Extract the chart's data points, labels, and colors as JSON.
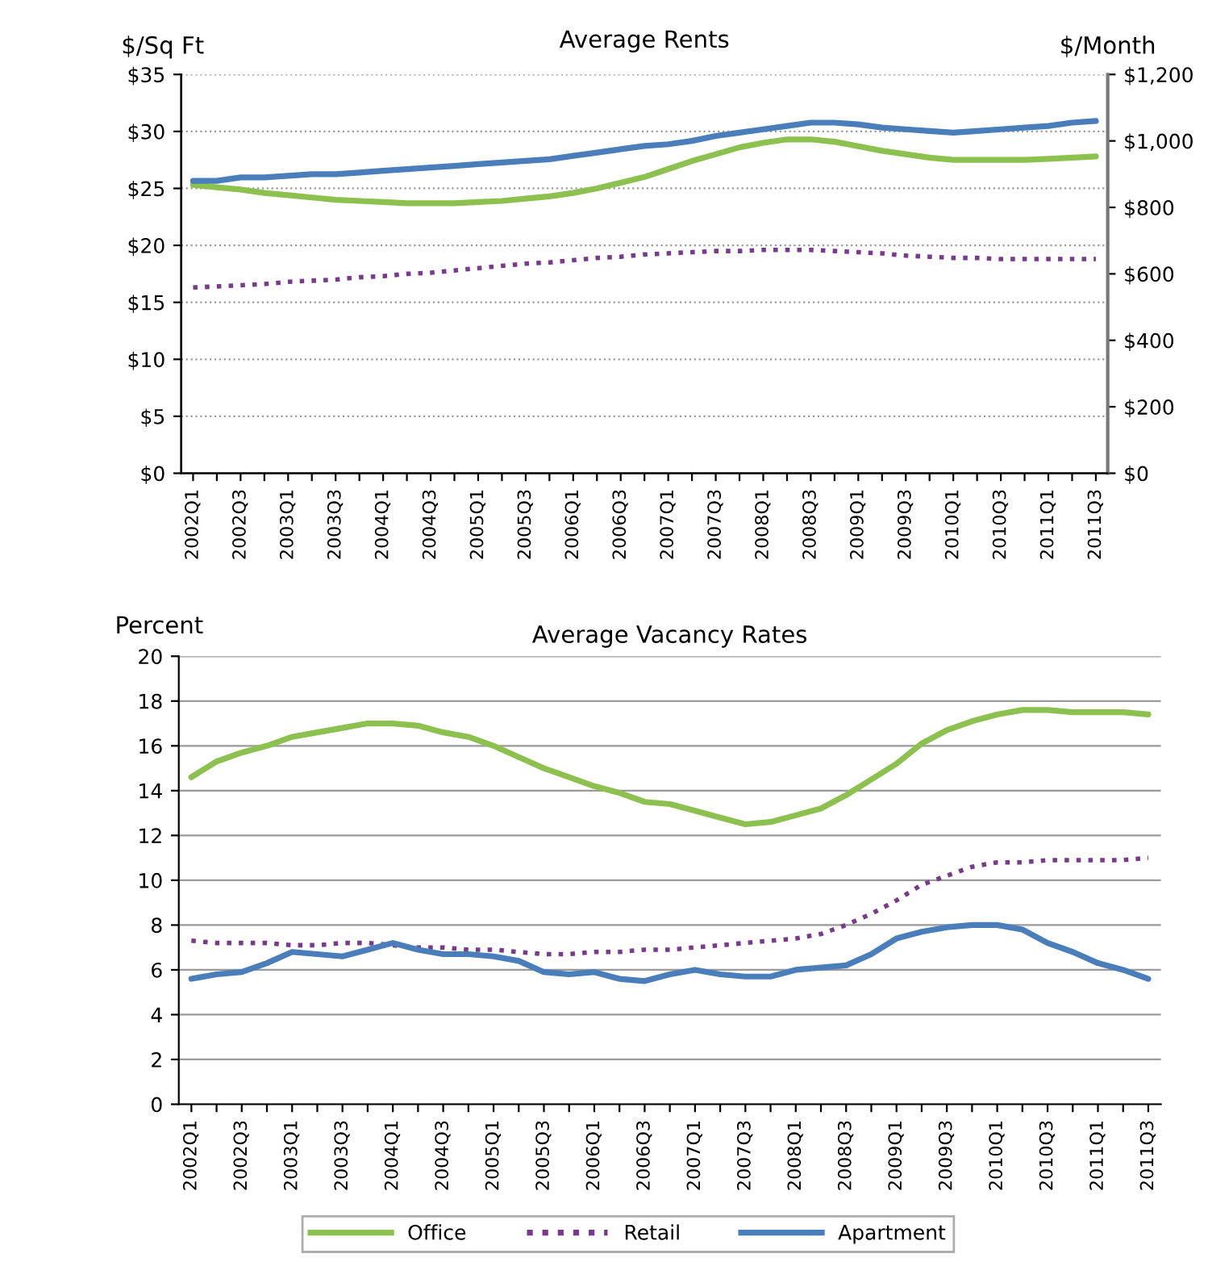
{
  "chart_data": [
    {
      "type": "line",
      "title": "Average Rents",
      "ylabel": "$/Sq Ft",
      "y2label": "$/Month",
      "categories": [
        "2002Q1",
        null,
        "2002Q3",
        null,
        "2003Q1",
        null,
        "2003Q3",
        null,
        "2004Q1",
        null,
        "2004Q3",
        null,
        "2005Q1",
        null,
        "2005Q3",
        null,
        "2006Q1",
        null,
        "2006Q3",
        null,
        "2007Q1",
        null,
        "2007Q3",
        null,
        "2008Q1",
        null,
        "2008Q3",
        null,
        "2009Q1",
        null,
        "2009Q3",
        null,
        "2010Q1",
        null,
        "2010Q3",
        null,
        "2011Q1",
        null,
        "2011Q3"
      ],
      "series": [
        {
          "color": "#8cc04f",
          "line_style": "solid",
          "values": [
            25.3,
            25.1,
            24.9,
            24.6,
            24.4,
            24.2,
            24.0,
            23.9,
            23.8,
            23.7,
            23.7,
            23.7,
            23.8,
            23.9,
            24.1,
            24.3,
            24.6,
            25.0,
            25.5,
            26.0,
            26.7,
            27.4,
            28.0,
            28.6,
            29.0,
            29.3,
            29.3,
            29.1,
            28.7,
            28.3,
            28.0,
            27.7,
            27.5,
            27.5,
            27.5,
            27.5,
            27.6,
            27.7,
            27.8
          ]
        },
        {
          "color": "#7a3a8c",
          "line_style": "dotted",
          "values": [
            16.3,
            16.4,
            16.5,
            16.6,
            16.8,
            16.9,
            17.0,
            17.2,
            17.3,
            17.5,
            17.6,
            17.8,
            18.0,
            18.2,
            18.4,
            18.5,
            18.7,
            18.9,
            19.0,
            19.2,
            19.3,
            19.4,
            19.5,
            19.5,
            19.6,
            19.6,
            19.6,
            19.5,
            19.4,
            19.3,
            19.1,
            19.0,
            18.9,
            18.9,
            18.8,
            18.8,
            18.8,
            18.8,
            18.8
          ]
        },
        {
          "color": "#4a7ebb",
          "line_style": "solid",
          "axis": "y2",
          "values": [
            880,
            880,
            890,
            890,
            895,
            900,
            900,
            905,
            910,
            915,
            920,
            925,
            930,
            935,
            940,
            945,
            955,
            965,
            975,
            985,
            990,
            1000,
            1015,
            1025,
            1035,
            1045,
            1055,
            1055,
            1050,
            1040,
            1035,
            1030,
            1025,
            1030,
            1035,
            1040,
            1045,
            1055,
            1060
          ]
        }
      ],
      "ylim": [
        0,
        35
      ],
      "yticks": [
        {
          "value": 0,
          "label": "$0"
        },
        {
          "value": 5,
          "label": "$5"
        },
        {
          "value": 10,
          "label": "$10"
        },
        {
          "value": 15,
          "label": "$15"
        },
        {
          "value": 20,
          "label": "$20"
        },
        {
          "value": 25,
          "label": "$25"
        },
        {
          "value": 30,
          "label": "$30"
        },
        {
          "value": 35,
          "label": "$35"
        }
      ],
      "y2lim": [
        0,
        1200
      ],
      "y2ticks": [
        {
          "value": 0,
          "label": "$0"
        },
        {
          "value": 200,
          "label": "$200"
        },
        {
          "value": 400,
          "label": "$400"
        },
        {
          "value": 600,
          "label": "$600"
        },
        {
          "value": 800,
          "label": "$800"
        },
        {
          "value": 1000,
          "label": "$1,000"
        },
        {
          "value": 1200,
          "label": "$1,200"
        }
      ],
      "grid": "y",
      "legend": false
    },
    {
      "type": "line",
      "title": "Average Vacancy Rates",
      "ylabel": "Percent",
      "categories": [
        "2002Q1",
        null,
        "2002Q3",
        null,
        "2003Q1",
        null,
        "2003Q3",
        null,
        "2004Q1",
        null,
        "2004Q3",
        null,
        "2005Q1",
        null,
        "2005Q3",
        null,
        "2006Q1",
        null,
        "2006Q3",
        null,
        "2007Q1",
        null,
        "2007Q3",
        null,
        "2008Q1",
        null,
        "2008Q3",
        null,
        "2009Q1",
        null,
        "2009Q3",
        null,
        "2010Q1",
        null,
        "2010Q3",
        null,
        "2011Q1",
        null,
        "2011Q3"
      ],
      "series": [
        {
          "name": "Office",
          "color": "#8cc04f",
          "line_style": "solid",
          "values": [
            14.6,
            15.3,
            15.7,
            16.0,
            16.4,
            16.6,
            16.8,
            17.0,
            17.0,
            16.9,
            16.6,
            16.4,
            16.0,
            15.5,
            15.0,
            14.6,
            14.2,
            13.9,
            13.5,
            13.4,
            13.1,
            12.8,
            12.5,
            12.6,
            12.9,
            13.2,
            13.8,
            14.5,
            15.2,
            16.1,
            16.7,
            17.1,
            17.4,
            17.6,
            17.6,
            17.5,
            17.5,
            17.5,
            17.4
          ]
        },
        {
          "name": "Retail",
          "color": "#7a3a8c",
          "line_style": "dotted",
          "values": [
            7.3,
            7.2,
            7.2,
            7.2,
            7.1,
            7.1,
            7.2,
            7.2,
            7.1,
            7.0,
            7.0,
            6.9,
            6.9,
            6.8,
            6.7,
            6.7,
            6.8,
            6.8,
            6.9,
            6.9,
            7.0,
            7.1,
            7.2,
            7.3,
            7.4,
            7.6,
            8.0,
            8.5,
            9.1,
            9.8,
            10.2,
            10.6,
            10.8,
            10.8,
            10.9,
            10.9,
            10.9,
            10.9,
            11.0
          ]
        },
        {
          "name": "Apartment",
          "color": "#4a7ebb",
          "line_style": "solid",
          "values": [
            5.6,
            5.8,
            5.9,
            6.3,
            6.8,
            6.7,
            6.6,
            6.9,
            7.2,
            6.9,
            6.7,
            6.7,
            6.6,
            6.4,
            5.9,
            5.8,
            5.9,
            5.6,
            5.5,
            5.8,
            6.0,
            5.8,
            5.7,
            5.7,
            6.0,
            6.1,
            6.2,
            6.7,
            7.4,
            7.7,
            7.9,
            8.0,
            8.0,
            7.8,
            7.2,
            6.8,
            6.3,
            6.0,
            5.6
          ]
        }
      ],
      "ylim": [
        0,
        20
      ],
      "yticks": [
        0,
        2,
        4,
        6,
        8,
        10,
        12,
        14,
        16,
        18,
        20
      ],
      "grid": "y",
      "legend": "bottom"
    }
  ]
}
